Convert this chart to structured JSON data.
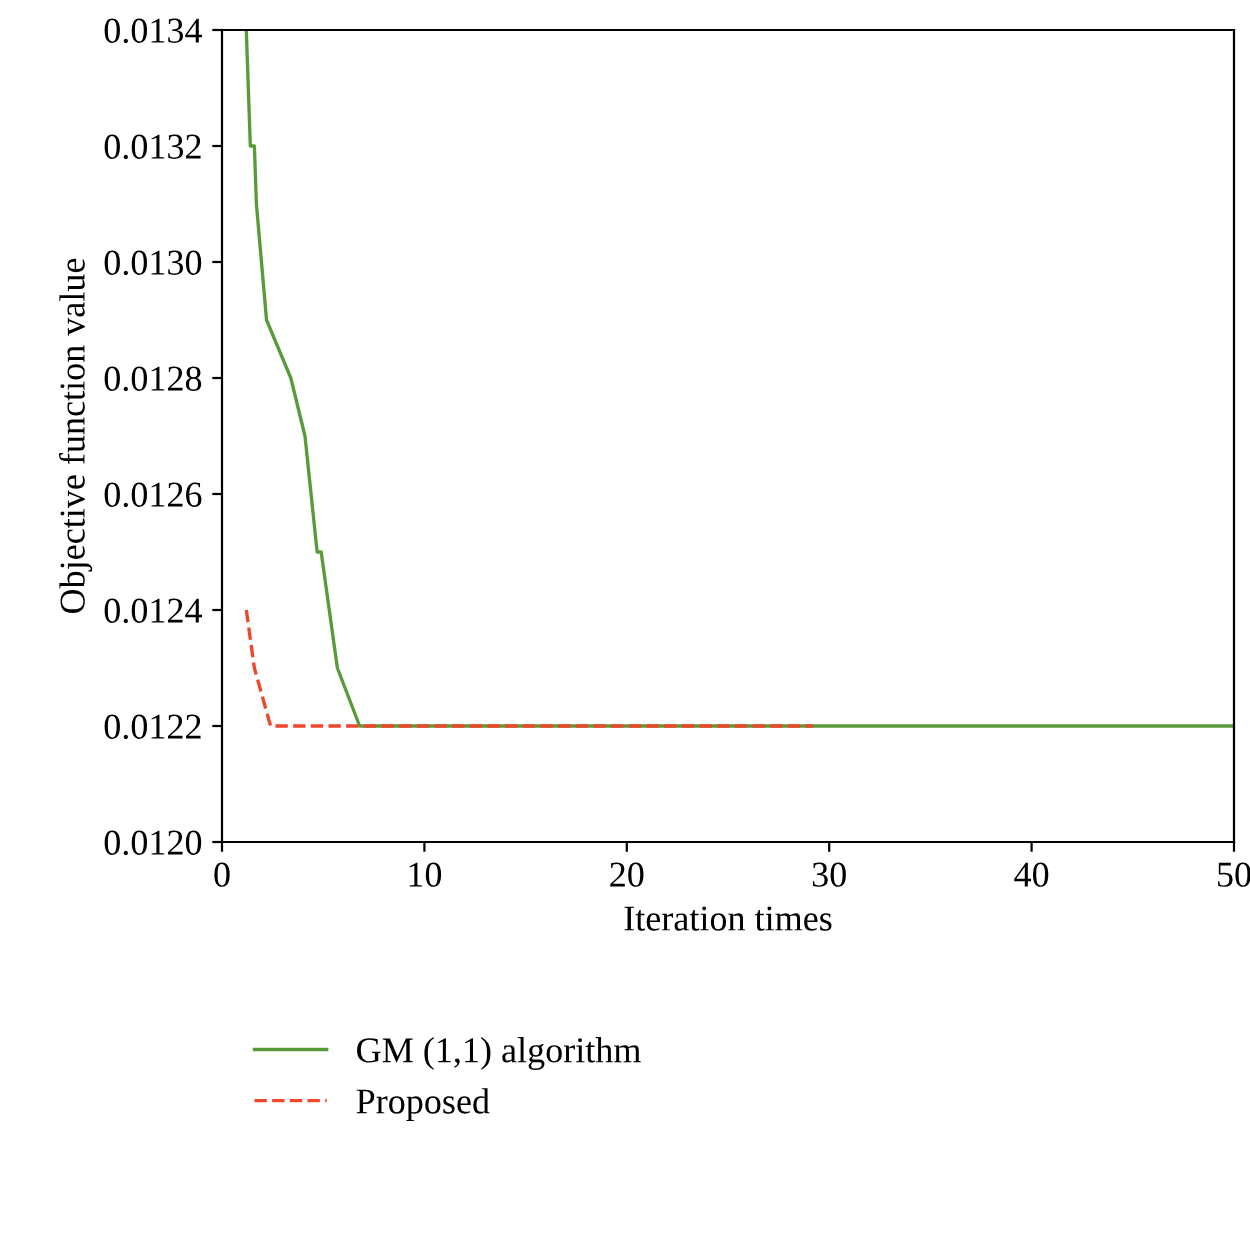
{
  "chart_data": {
    "type": "line",
    "xlabel": "Iteration times",
    "ylabel": "Objective function value",
    "xlim": [
      0,
      50
    ],
    "xticks": [
      0,
      10,
      20,
      30,
      40,
      50
    ],
    "ylim": [
      0.012,
      0.0134
    ],
    "yticks": [
      {
        "value": 0.012,
        "label": "0.0120"
      },
      {
        "value": 0.0122,
        "label": "0.0122"
      },
      {
        "value": 0.0124,
        "label": "0.0124"
      },
      {
        "value": 0.0126,
        "label": "0.0126"
      },
      {
        "value": 0.0128,
        "label": "0.0128"
      },
      {
        "value": 0.013,
        "label": "0.0130"
      },
      {
        "value": 0.0132,
        "label": "0.0132"
      },
      {
        "value": 0.0134,
        "label": "0.0134"
      }
    ],
    "grid": false,
    "legend": "bottom",
    "series": [
      {
        "name": "GM (1,1) algorithm",
        "color": "#5a9a3a",
        "line_style": "solid",
        "x": [
          1.2,
          1.4,
          1.6,
          1.7,
          2.2,
          3.4,
          4.1,
          4.7,
          4.9,
          5.7,
          6.8,
          50
        ],
        "values": [
          0.0134,
          0.0132,
          0.0132,
          0.0131,
          0.0129,
          0.0128,
          0.0127,
          0.0125,
          0.0125,
          0.0123,
          0.0122,
          0.0122
        ]
      },
      {
        "name": "Proposed",
        "color": "#f0462a",
        "line_style": "dashed",
        "x": [
          1.2,
          1.6,
          2.4,
          29.2
        ],
        "values": [
          0.0124,
          0.0123,
          0.0122,
          0.0122
        ]
      }
    ]
  }
}
